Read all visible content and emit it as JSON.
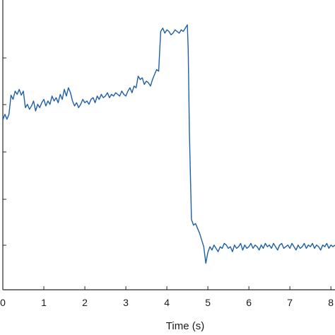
{
  "chart_data": {
    "type": "line",
    "title": "",
    "xlabel": "Time (s)",
    "ylabel": "",
    "xlim": [
      0,
      8.1
    ],
    "x_ticks": [
      0,
      1,
      2,
      3,
      4,
      5,
      6,
      7,
      8
    ],
    "x_tick_labels": [
      "0",
      "1",
      "2",
      "3",
      "4",
      "5",
      "6",
      "7",
      "8"
    ],
    "y_tick_count_visible": 5,
    "grid": false,
    "line_color": "#1f5fa8",
    "series": [
      {
        "x": [
          0.0,
          0.05,
          0.1,
          0.15,
          0.2,
          0.25,
          0.3,
          0.35,
          0.4,
          0.45,
          0.5,
          0.55,
          0.6,
          0.65,
          0.7,
          0.75,
          0.8,
          0.85,
          0.9,
          0.95,
          1.0,
          1.05,
          1.1,
          1.15,
          1.2,
          1.25,
          1.3,
          1.35,
          1.4,
          1.45,
          1.5,
          1.55,
          1.6,
          1.65,
          1.7,
          1.75,
          1.8,
          1.85,
          1.9,
          1.95,
          2.0,
          2.05,
          2.1,
          2.15,
          2.2,
          2.25,
          2.3,
          2.35,
          2.4,
          2.45,
          2.5,
          2.55,
          2.6,
          2.65,
          2.7,
          2.75,
          2.8,
          2.85,
          2.9,
          2.95,
          3.0,
          3.05,
          3.1,
          3.15,
          3.2,
          3.25,
          3.3,
          3.35,
          3.4,
          3.45,
          3.5,
          3.55,
          3.6,
          3.65,
          3.7,
          3.75,
          3.8,
          3.85,
          3.9,
          3.95,
          4.0,
          4.05,
          4.1,
          4.15,
          4.2,
          4.25,
          4.3,
          4.35,
          4.4,
          4.45,
          4.5,
          4.52,
          4.55,
          4.6,
          4.65,
          4.7,
          4.75,
          4.8,
          4.85,
          4.9,
          4.95,
          5.0,
          5.05,
          5.1,
          5.15,
          5.2,
          5.25,
          5.3,
          5.35,
          5.4,
          5.45,
          5.5,
          5.55,
          5.6,
          5.65,
          5.7,
          5.75,
          5.8,
          5.85,
          5.9,
          5.95,
          6.0,
          6.05,
          6.1,
          6.15,
          6.2,
          6.25,
          6.3,
          6.35,
          6.4,
          6.45,
          6.5,
          6.55,
          6.6,
          6.65,
          6.7,
          6.75,
          6.8,
          6.85,
          6.9,
          6.95,
          7.0,
          7.05,
          7.1,
          7.15,
          7.2,
          7.25,
          7.3,
          7.35,
          7.4,
          7.45,
          7.5,
          7.55,
          7.6,
          7.65,
          7.7,
          7.75,
          7.8,
          7.85,
          7.9,
          7.95,
          8.0,
          8.05,
          8.1
        ],
        "y": [
          4.55,
          4.62,
          4.56,
          4.62,
          4.85,
          4.8,
          4.9,
          4.86,
          4.92,
          4.85,
          4.9,
          4.7,
          4.74,
          4.68,
          4.72,
          4.78,
          4.66,
          4.74,
          4.7,
          4.76,
          4.8,
          4.72,
          4.78,
          4.74,
          4.84,
          4.78,
          4.82,
          4.76,
          4.86,
          4.8,
          4.92,
          4.84,
          4.94,
          4.88,
          4.78,
          4.72,
          4.76,
          4.7,
          4.74,
          4.8,
          4.76,
          4.78,
          4.74,
          4.8,
          4.82,
          4.76,
          4.84,
          4.8,
          4.86,
          4.82,
          4.84,
          4.88,
          4.82,
          4.86,
          4.84,
          4.88,
          4.86,
          4.84,
          4.9,
          4.86,
          4.84,
          4.9,
          4.94,
          4.88,
          4.96,
          4.94,
          5.08,
          5.04,
          5.06,
          4.98,
          5.02,
          5.0,
          4.96,
          5.04,
          5.1,
          5.16,
          5.14,
          5.62,
          5.66,
          5.6,
          5.64,
          5.62,
          5.58,
          5.6,
          5.64,
          5.62,
          5.6,
          5.64,
          5.62,
          5.66,
          5.7,
          5.4,
          4.4,
          3.35,
          3.28,
          3.3,
          3.24,
          3.18,
          3.1,
          3.02,
          2.82,
          2.95,
          3.02,
          2.98,
          3.04,
          3.0,
          2.96,
          3.02,
          3.0,
          3.06,
          3.04,
          3.0,
          3.02,
          2.96,
          3.04,
          3.0,
          3.02,
          3.06,
          2.98,
          3.04,
          3.0,
          3.02,
          3.06,
          3.0,
          3.04,
          3.02,
          2.98,
          3.04,
          3.0,
          3.06,
          3.02,
          3.04,
          3.0,
          3.06,
          3.02,
          2.98,
          3.04,
          3.06,
          3.0,
          3.02,
          3.04,
          3.0,
          3.06,
          3.02,
          2.98,
          3.04,
          3.0,
          3.02,
          3.06,
          3.0,
          3.04,
          3.02,
          3.06,
          3.0,
          3.04,
          3.02,
          2.98,
          3.04,
          3.02,
          3.06,
          3.0,
          3.04,
          3.02,
          3.04
        ]
      }
    ]
  }
}
